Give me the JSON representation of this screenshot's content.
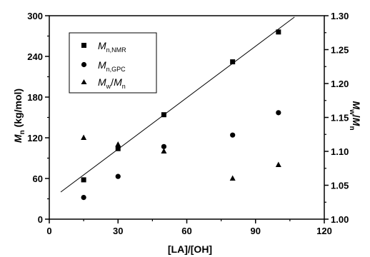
{
  "chart_data": {
    "type": "scatter",
    "x_axis": {
      "label": "[LA]/[OH]",
      "range": [
        0,
        120
      ],
      "ticks": [
        0,
        30,
        60,
        90,
        120
      ]
    },
    "y_axis_left": {
      "label_main": "M",
      "label_sub": "n",
      "label_unit": " (kg/mol)",
      "range": [
        0,
        300
      ],
      "ticks": [
        0,
        60,
        120,
        180,
        240,
        300
      ]
    },
    "y_axis_right": {
      "label_main1": "M",
      "label_sub1": "w",
      "label_slash": "/",
      "label_main2": "M",
      "label_sub2": "n",
      "range": [
        1.0,
        1.3
      ],
      "ticks": [
        "1.00",
        "1.05",
        "1.10",
        "1.15",
        "1.20",
        "1.25",
        "1.30"
      ]
    },
    "series": [
      {
        "name": "Mn,NMR",
        "legend_main": "M",
        "legend_sub": "n,NMR",
        "marker": "square",
        "axis": "left",
        "x": [
          15,
          30,
          50,
          80,
          100
        ],
        "y": [
          58,
          104,
          154,
          232,
          276
        ]
      },
      {
        "name": "Mn,GPC",
        "legend_main": "M",
        "legend_sub": "n,GPC",
        "marker": "circle",
        "axis": "left",
        "x": [
          15,
          30,
          50,
          80,
          100
        ],
        "y": [
          32,
          63,
          107,
          124,
          157
        ]
      },
      {
        "name": "Mw/Mn",
        "legend_main1": "M",
        "legend_sub1": "w",
        "legend_slash": "/",
        "legend_main2": "M",
        "legend_sub2": "n",
        "marker": "triangle",
        "axis": "right",
        "x": [
          15,
          30,
          50,
          80,
          100
        ],
        "y": [
          1.12,
          1.11,
          1.1,
          1.06,
          1.08
        ]
      }
    ],
    "fit_line": {
      "series": "Mn,NMR",
      "x": [
        5,
        107
      ],
      "y": [
        40,
        298
      ]
    },
    "legend_position": "top-left",
    "grid": false
  }
}
